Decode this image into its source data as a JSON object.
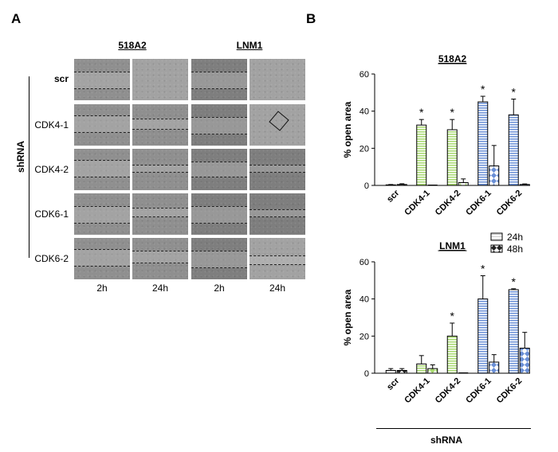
{
  "panel_a": {
    "letter": "A",
    "col_headers": [
      "518A2",
      "LNM1"
    ],
    "row_labels": [
      "scr",
      "CDK4-1",
      "CDK4-2",
      "CDK6-1",
      "CDK6-2"
    ],
    "time_labels": [
      "2h",
      "24h",
      "2h",
      "24h"
    ],
    "side_label": "shRNA"
  },
  "panel_b": {
    "letter": "B",
    "bottom_label": "shRNA"
  },
  "legend": {
    "items": [
      "24h",
      "48h"
    ]
  },
  "colors": {
    "green": "#a6d86e",
    "blue": "#6a8fd6",
    "white": "#ffffff"
  },
  "chart_data": [
    {
      "type": "bar",
      "title": "518A2",
      "ylabel": "% open area",
      "ylim": [
        0,
        60
      ],
      "yticks": [
        0,
        20,
        40,
        60
      ],
      "categories": [
        "scr",
        "CDK4-1",
        "CDK4-2",
        "CDK6-1",
        "CDK6-2"
      ],
      "series": [
        {
          "name": "24h",
          "values": [
            0.3,
            32.5,
            30,
            45,
            38
          ],
          "errors": [
            0.2,
            3,
            5.5,
            3,
            8.5
          ]
        },
        {
          "name": "48h",
          "values": [
            0.5,
            0,
            1.5,
            10.5,
            0.5
          ],
          "errors": [
            0.4,
            0,
            2,
            11,
            0.3
          ]
        }
      ],
      "annotations": [
        "*",
        "*",
        "*",
        "*"
      ]
    },
    {
      "type": "bar",
      "title": "LNM1",
      "ylabel": "% open area",
      "ylim": [
        0,
        60
      ],
      "yticks": [
        0,
        20,
        40,
        60
      ],
      "categories": [
        "scr",
        "CDK4-1",
        "CDK4-2",
        "CDK6-1",
        "CDK6-2"
      ],
      "series": [
        {
          "name": "24h",
          "values": [
            1.5,
            5,
            20,
            40,
            45
          ],
          "errors": [
            1,
            4.5,
            7,
            12.5,
            0.5
          ]
        },
        {
          "name": "48h",
          "values": [
            1.5,
            2.5,
            0,
            6,
            13.5
          ],
          "errors": [
            1,
            2,
            0,
            4,
            8.5
          ]
        }
      ],
      "annotations": [
        "*",
        "*",
        "*"
      ]
    }
  ]
}
